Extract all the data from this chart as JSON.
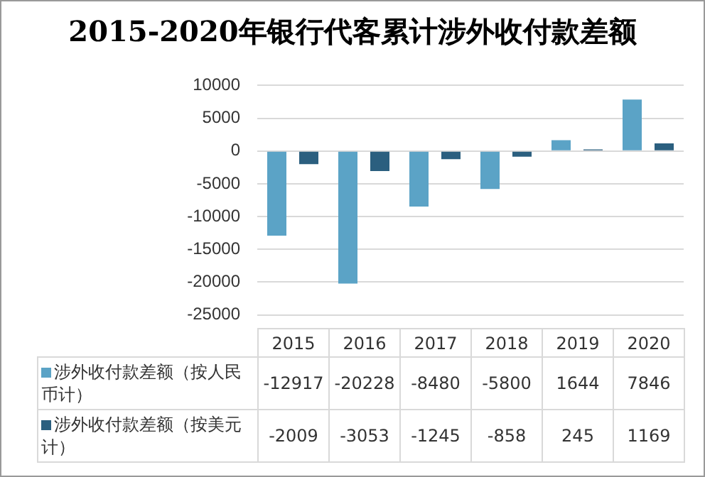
{
  "chart_data": {
    "type": "bar",
    "title": "2015-2020年银行代客累计涉外收付款差额",
    "categories": [
      "2015",
      "2016",
      "2017",
      "2018",
      "2019",
      "2020"
    ],
    "series": [
      {
        "name": "涉外收付款差额（按人民币计）",
        "color": "#5ba3c6",
        "values": [
          -12917,
          -20228,
          -8480,
          -5800,
          1644,
          7846
        ]
      },
      {
        "name": "涉外收付款差额（按美元计）",
        "color": "#2b5f7f",
        "values": [
          -2009,
          -3053,
          -1245,
          -858,
          245,
          1169
        ]
      }
    ],
    "ylim": [
      -25000,
      10000
    ],
    "yticks": [
      -25000,
      -20000,
      -15000,
      -10000,
      -5000,
      0,
      5000,
      10000
    ],
    "grid": "y",
    "legend": "bottom",
    "data_labels": true
  }
}
